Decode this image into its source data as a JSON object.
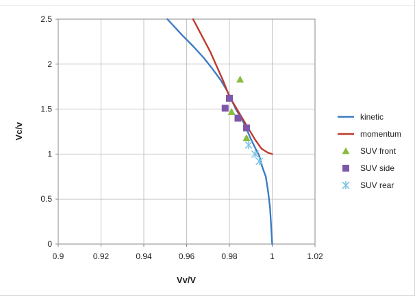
{
  "chart_data": {
    "type": "scatter",
    "xlabel": "Vv/V",
    "ylabel": "Vc/v",
    "xlim": [
      0.9,
      1.02
    ],
    "ylim": [
      0,
      2.5
    ],
    "xticks": [
      0.9,
      0.92,
      0.94,
      0.96,
      0.98,
      1,
      1.02
    ],
    "xtick_labels": [
      "0.9",
      "0.92",
      "0.94",
      "0.96",
      "0.98",
      "1",
      "1.02"
    ],
    "yticks": [
      0,
      0.5,
      1,
      1.5,
      2,
      2.5
    ],
    "ytick_labels": [
      "0",
      "0.5",
      "1",
      "1.5",
      "2",
      "2.5"
    ],
    "grid": true,
    "legend_position": "right",
    "series": [
      {
        "name": "kinetic",
        "kind": "line",
        "color": "#3d7bc4",
        "points": [
          [
            0.951,
            2.5
          ],
          [
            0.958,
            2.32
          ],
          [
            0.963,
            2.2
          ],
          [
            0.968,
            2.07
          ],
          [
            0.972,
            1.95
          ],
          [
            0.976,
            1.82
          ],
          [
            0.979,
            1.7
          ],
          [
            0.981,
            1.6
          ],
          [
            0.983,
            1.5
          ],
          [
            0.986,
            1.38
          ],
          [
            0.988,
            1.28
          ],
          [
            0.99,
            1.17
          ],
          [
            0.992,
            1.07
          ],
          [
            0.994,
            0.98
          ],
          [
            0.995,
            0.88
          ],
          [
            0.997,
            0.75
          ],
          [
            0.998,
            0.6
          ],
          [
            0.999,
            0.4
          ],
          [
            0.9995,
            0.2
          ],
          [
            1.0,
            0
          ]
        ]
      },
      {
        "name": "momentum",
        "kind": "line",
        "color": "#c0392b",
        "points": [
          [
            0.963,
            2.5
          ],
          [
            0.967,
            2.32
          ],
          [
            0.971,
            2.14
          ],
          [
            0.974,
            1.98
          ],
          [
            0.977,
            1.82
          ],
          [
            0.98,
            1.64
          ],
          [
            0.984,
            1.48
          ],
          [
            0.988,
            1.32
          ],
          [
            0.992,
            1.16
          ],
          [
            0.995,
            1.06
          ],
          [
            0.998,
            1.015
          ],
          [
            1.0,
            1.0
          ]
        ]
      },
      {
        "name": "SUV front",
        "kind": "marker",
        "marker": "triangle",
        "color": "#8bbb3f",
        "points": [
          [
            0.985,
            1.83
          ],
          [
            0.981,
            1.47
          ],
          [
            0.988,
            1.18
          ]
        ]
      },
      {
        "name": "SUV side",
        "kind": "marker",
        "marker": "square",
        "color": "#7e57a8",
        "points": [
          [
            0.98,
            1.62
          ],
          [
            0.978,
            1.51
          ],
          [
            0.984,
            1.4
          ],
          [
            0.988,
            1.29
          ]
        ]
      },
      {
        "name": "SUV rear",
        "kind": "marker",
        "marker": "asterisk",
        "color": "#7cc4e6",
        "points": [
          [
            0.989,
            1.1
          ],
          [
            0.992,
            1.0
          ],
          [
            0.994,
            0.92
          ]
        ]
      }
    ]
  }
}
